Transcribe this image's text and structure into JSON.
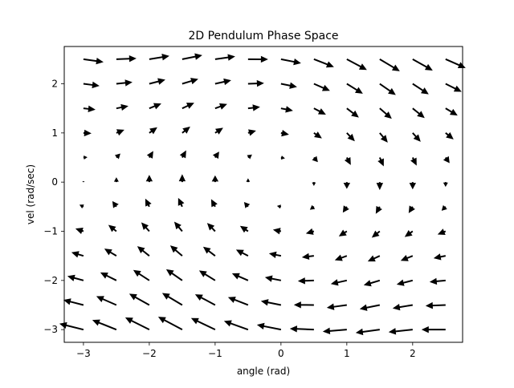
{
  "chart_data": {
    "type": "quiver",
    "title": "2D Pendulum Phase Space",
    "xlabel": "angle (rad)",
    "ylabel": "vel (rad/sec)",
    "xlim": [
      -3.2916,
      2.7584
    ],
    "ylim": [
      -3.2583,
      2.7583
    ],
    "xticks": [
      -3,
      -2,
      -1,
      0,
      1,
      2
    ],
    "yticks": [
      -3,
      -2,
      -1,
      0,
      1,
      2
    ],
    "grid": false,
    "field": {
      "x_start": -3.0,
      "x_step": 0.5,
      "x_count": 12,
      "y_start": -3.0,
      "y_step": 0.5,
      "y_count": 12,
      "u": "y",
      "v": "-sin(x) - 0.2*y",
      "arrow_color": "#000000"
    }
  }
}
